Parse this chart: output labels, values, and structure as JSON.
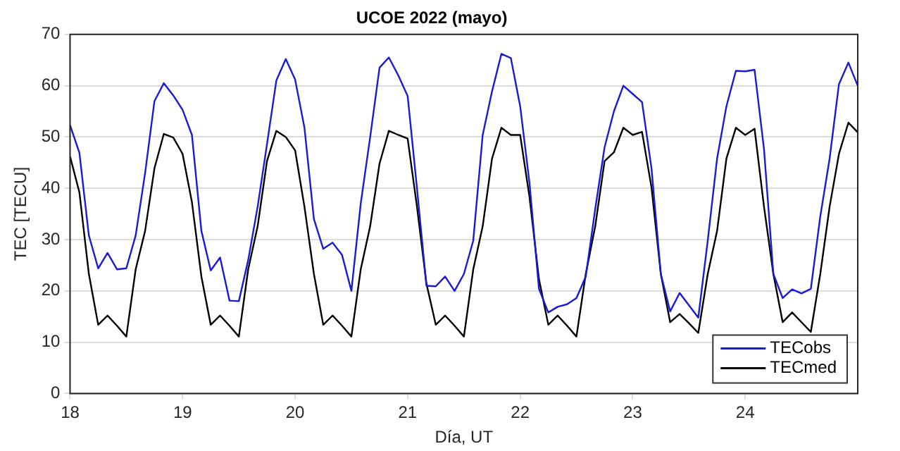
{
  "chart_data": {
    "type": "line",
    "title": "UCOE 2022 (mayo)",
    "xlabel": "Día, UT",
    "ylabel": "TEC [TECU]",
    "x": [
      18,
      18.083,
      18.167,
      18.25,
      18.333,
      18.417,
      18.5,
      18.583,
      18.667,
      18.75,
      18.833,
      18.917,
      19,
      19.083,
      19.167,
      19.25,
      19.333,
      19.417,
      19.5,
      19.583,
      19.667,
      19.75,
      19.833,
      19.917,
      20,
      20.083,
      20.167,
      20.25,
      20.333,
      20.417,
      20.5,
      20.583,
      20.667,
      20.75,
      20.833,
      20.917,
      21,
      21.083,
      21.167,
      21.25,
      21.333,
      21.417,
      21.5,
      21.583,
      21.667,
      21.75,
      21.833,
      21.917,
      22,
      22.083,
      22.167,
      22.25,
      22.333,
      22.417,
      22.5,
      22.583,
      22.667,
      22.75,
      22.833,
      22.917,
      23,
      23.083,
      23.167,
      23.25,
      23.333,
      23.417,
      23.5,
      23.583,
      23.667,
      23.75,
      23.833,
      23.917,
      24,
      24.083,
      24.167,
      24.25,
      24.333,
      24.417,
      24.5,
      24.583,
      24.667,
      24.75,
      24.833,
      24.917,
      25
    ],
    "series": [
      {
        "name": "TECobs",
        "color": "#1a1ad6",
        "values": [
          52.3,
          46.9,
          30.8,
          24.4,
          27.4,
          24.2,
          24.4,
          30.8,
          43,
          57,
          60.5,
          58.1,
          55.3,
          50.4,
          31.7,
          24,
          26.5,
          18.1,
          18,
          26,
          36.4,
          48.6,
          61,
          65.2,
          61.2,
          51.8,
          34,
          28.2,
          29.4,
          27,
          20,
          37,
          50,
          63.5,
          65.5,
          62,
          58,
          40,
          21,
          20.9,
          22.8,
          20,
          23.3,
          29.8,
          50.4,
          58.9,
          66.2,
          65.4,
          56,
          41,
          20.4,
          15.8,
          16.9,
          17.4,
          18.6,
          22.8,
          36,
          48,
          55,
          60,
          58.4,
          56.8,
          43.9,
          23.3,
          16,
          19.6,
          17.2,
          14.8,
          29.8,
          45.8,
          56,
          62.9,
          62.8,
          63.1,
          47.6,
          23.3,
          18.6,
          20.3,
          19.5,
          20.4,
          34.5,
          45.8,
          60.3,
          64.5,
          60
        ]
      },
      {
        "name": "TECmed",
        "color": "#000000",
        "values": [
          46.2,
          39.2,
          23.3,
          13.4,
          15.2,
          13.2,
          11.1,
          24.2,
          31.7,
          43.9,
          50.6,
          49.9,
          46.7,
          37.3,
          22.8,
          13.4,
          15.2,
          13.2,
          11.1,
          24.2,
          32.6,
          45.3,
          51.2,
          50,
          47.4,
          36.4,
          23.3,
          13.4,
          15.2,
          13.2,
          11.1,
          24.2,
          32.6,
          44.8,
          51.2,
          50.4,
          49.7,
          36.4,
          21.4,
          13.4,
          15.2,
          13.2,
          11.1,
          24.2,
          32.6,
          45.8,
          51.8,
          50.4,
          50.4,
          38.3,
          22.3,
          13.4,
          15.2,
          13.2,
          11.1,
          23.3,
          32.6,
          45.3,
          47,
          51.8,
          50.4,
          51,
          40.2,
          23.3,
          13.9,
          15.5,
          13.7,
          11.8,
          23.3,
          31.7,
          45.8,
          51.8,
          50.4,
          51.6,
          36.4,
          23.3,
          13.9,
          15.8,
          13.9,
          12,
          23.3,
          36.4,
          46.7,
          52.8,
          50.9
        ]
      }
    ],
    "xlim": [
      18,
      25
    ],
    "xticks": [
      18,
      19,
      20,
      21,
      22,
      23,
      24
    ],
    "ylim": [
      0,
      70
    ],
    "yticks": [
      0,
      10,
      20,
      30,
      40,
      50,
      60,
      70
    ],
    "grid": "y",
    "legend": "bottom right"
  }
}
